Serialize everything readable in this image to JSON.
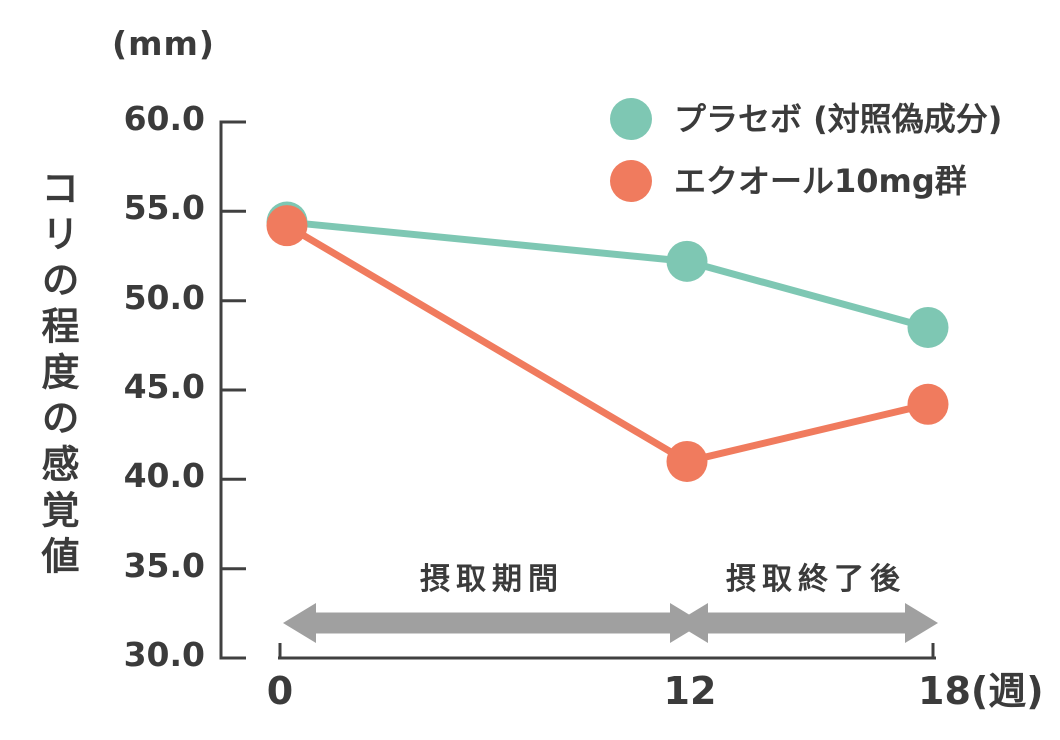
{
  "unit_label": "(mm)",
  "y_axis_title": "コリの程度の感覚値",
  "legend": {
    "position": "top-right",
    "items": [
      {
        "label": "プラセボ (対照偽成分)",
        "color": "#7ec7b3"
      },
      {
        "label": "エクオール10mg群",
        "color": "#f07b5e"
      }
    ]
  },
  "period_annotations": {
    "intake": "摂取期間",
    "after_intake": "摂取終了後",
    "arrow_color": "#a0a0a0"
  },
  "axes": {
    "yticks": [
      "60.0",
      "55.0",
      "50.0",
      "45.0",
      "40.0",
      "35.0",
      "30.0"
    ],
    "xticks": [
      "0",
      "12",
      "18(週)"
    ]
  },
  "colors": {
    "text": "#3b3b3b",
    "axis": "#404040",
    "arrow": "#a0a0a0",
    "background": "#ffffff"
  },
  "chart_data": {
    "type": "line",
    "title": "コリの程度の感覚値",
    "ylabel": "コリの程度の感覚値",
    "y_unit": "mm",
    "x_unit": "週",
    "categories": [
      0,
      12,
      18
    ],
    "xtick_labels": [
      "0",
      "12",
      "18(週)"
    ],
    "ytick_labels": [
      "60.0",
      "55.0",
      "50.0",
      "45.0",
      "40.0",
      "35.0",
      "30.0"
    ],
    "ylim": [
      30.0,
      60.0
    ],
    "grid": false,
    "legend_position": "top-right",
    "series": [
      {
        "name": "プラセボ (対照偽成分)",
        "color": "#7ec7b3",
        "values": [
          54.4,
          52.2,
          48.5
        ]
      },
      {
        "name": "エクオール10mg群",
        "color": "#f07b5e",
        "values": [
          54.2,
          41.0,
          44.2
        ]
      }
    ],
    "annotations": [
      {
        "label": "摂取期間",
        "x_range": [
          0,
          12
        ]
      },
      {
        "label": "摂取終了後",
        "x_range": [
          12,
          18
        ]
      }
    ]
  }
}
